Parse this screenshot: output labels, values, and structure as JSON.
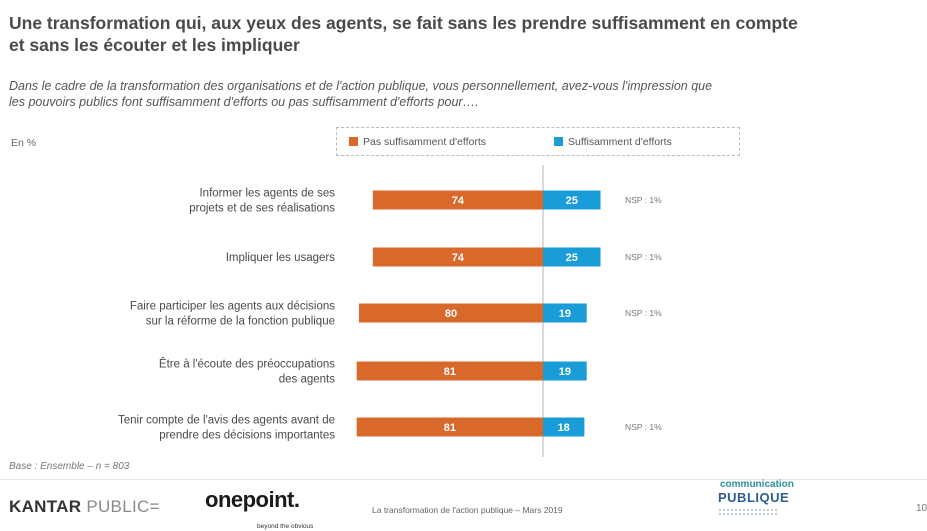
{
  "header": {
    "title": "Une transformation qui, aux yeux des agents, se fait sans les prendre suffisamment en compte\net sans les écouter et les impliquer",
    "question": "Dans le cadre de la transformation des organisations et de l'action publique, vous personnellement, avez-vous l'impression que\nles pouvoirs publics font suffisamment d'efforts ou pas suffisamment d'efforts pour…."
  },
  "chart_data": {
    "type": "bar",
    "orientation": "horizontal",
    "stacked": "diverging",
    "unit_label": "En %",
    "categories": [
      "Informer les agents de ses\nprojets et de ses réalisations",
      "Impliquer les usagers",
      "Faire participer les agents aux décisions\nsur la réforme de la fonction publique",
      "Être à l'écoute des préoccupations\ndes agents",
      "Tenir compte de l'avis des agents avant de\nprendre des décisions importantes"
    ],
    "series": [
      {
        "name": "Pas suffisamment d'efforts",
        "color": "#d9682b",
        "values": [
          74,
          74,
          80,
          81,
          81
        ]
      },
      {
        "name": "Suffisamment d'efforts",
        "color": "#1a9cd8",
        "values": [
          25,
          25,
          19,
          19,
          18
        ]
      }
    ],
    "annotations": [
      "NSP : 1%",
      "NSP : 1%",
      "NSP : 1%",
      "",
      "NSP : 1%"
    ],
    "legend_position": "top",
    "grid": false
  },
  "footer": {
    "base": "Base : Ensemble – n = 803",
    "kantar_bold": "KANTAR",
    "kantar_light": "PUBLIC=",
    "onepoint": "onepoint.",
    "onepoint_tagline": "beyond the obvious",
    "source": "La transformation de l'action publique – Mars 2019",
    "cp_small": "communication",
    "cp_big": "PUBLIQUE",
    "page": "10"
  }
}
